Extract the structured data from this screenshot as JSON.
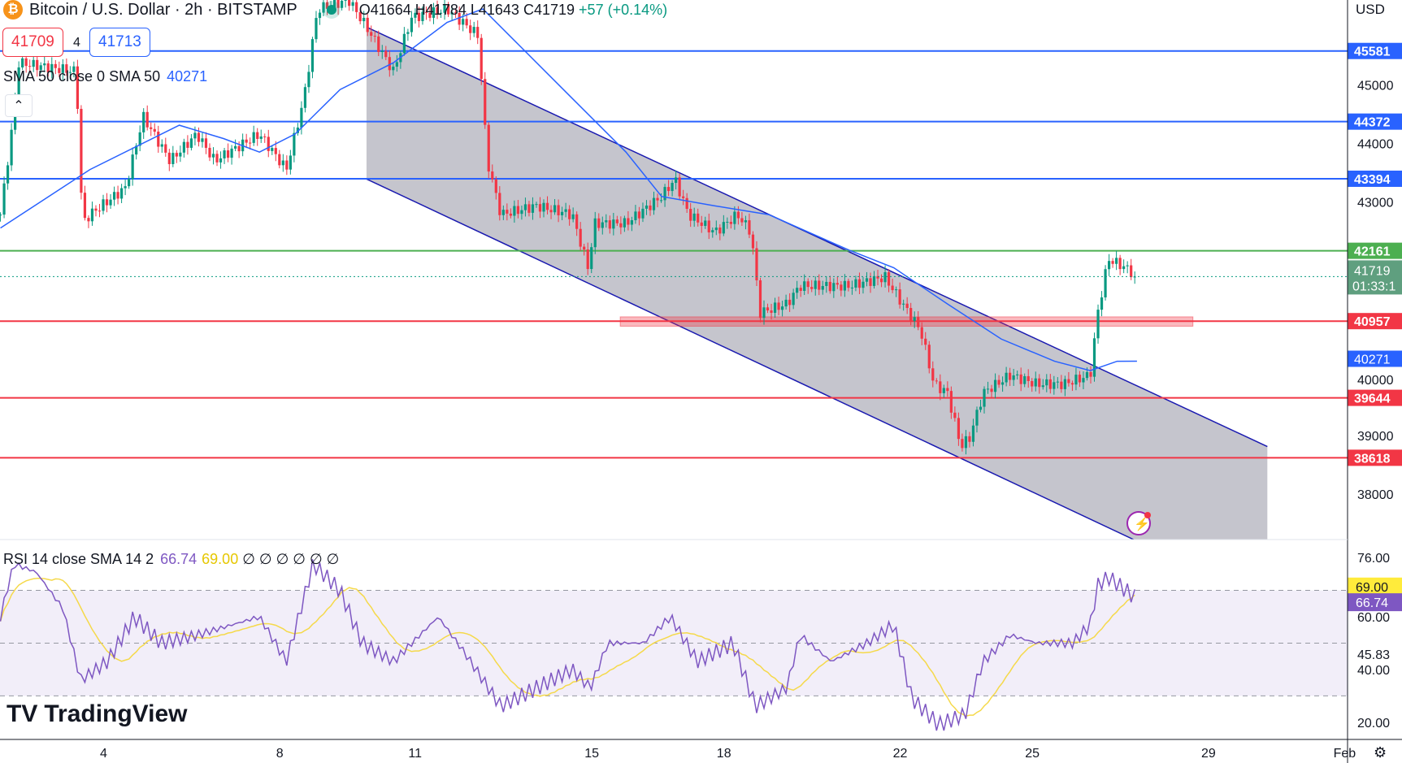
{
  "header": {
    "symbol": "Bitcoin / U.S. Dollar · 2h · BITSTAMP",
    "coin_icon": "bitcoin-icon",
    "open": "O41664",
    "high": "H41784",
    "low": "L41643",
    "close": "C41719",
    "change": "+57 (+0.14%)"
  },
  "order": {
    "sell": "41709",
    "spread": "4",
    "buy": "41713"
  },
  "sma": {
    "label": "SMA 50 close 0 SMA 50",
    "value": "40271"
  },
  "rsi": {
    "label": "RSI 14 close SMA 14 2",
    "value": "66.74",
    "sma_value": "69.00",
    "extras": "∅ ∅ ∅ ∅ ∅ ∅"
  },
  "axis": {
    "currency": "USD",
    "countdown": "01:33:1"
  },
  "logo": "TradingView",
  "colors": {
    "up": "#089981",
    "down": "#f23645",
    "blue": "#2962ff",
    "green": "#4caf50",
    "red": "#f23645",
    "sma": "#2962ff",
    "rsi": "#7e57c2",
    "rsi_sma": "#f5d94a",
    "channel": "#bbbbc4"
  },
  "chart_data": {
    "type": "candlestick",
    "x_unit": "day of January",
    "price_ticks": [
      38000,
      39000,
      40000,
      43000,
      44000,
      45000
    ],
    "x_ticks": [
      {
        "day": 4,
        "label": "4"
      },
      {
        "day": 8,
        "label": "8"
      },
      {
        "day": 11,
        "label": "11"
      },
      {
        "day": 15,
        "label": "15"
      },
      {
        "day": 18,
        "label": "18"
      },
      {
        "day": 22,
        "label": "22"
      },
      {
        "day": 25,
        "label": "25"
      },
      {
        "day": 29,
        "label": "29"
      },
      {
        "day": 32,
        "label": "Feb"
      }
    ],
    "price_path": [
      [
        1.63,
        42780
      ],
      [
        1.93,
        44460
      ],
      [
        2.03,
        45380
      ],
      [
        3.35,
        45230
      ],
      [
        3.49,
        42630
      ],
      [
        3.66,
        42780
      ],
      [
        4.47,
        43240
      ],
      [
        4.87,
        44460
      ],
      [
        5.48,
        43700
      ],
      [
        6.09,
        44160
      ],
      [
        6.49,
        43700
      ],
      [
        7.51,
        44160
      ],
      [
        8.12,
        43550
      ],
      [
        8.52,
        44770
      ],
      [
        8.83,
        46300
      ],
      [
        9.54,
        46450
      ],
      [
        9.94,
        45990
      ],
      [
        10.55,
        45230
      ],
      [
        10.96,
        46150
      ],
      [
        11.77,
        46300
      ],
      [
        12.48,
        45840
      ],
      [
        12.68,
        43700
      ],
      [
        12.99,
        42780
      ],
      [
        13.8,
        42930
      ],
      [
        14.61,
        42780
      ],
      [
        14.97,
        41870
      ],
      [
        15.12,
        42630
      ],
      [
        15.83,
        42630
      ],
      [
        16.64,
        43090
      ],
      [
        16.94,
        43390
      ],
      [
        17.25,
        42780
      ],
      [
        17.85,
        42480
      ],
      [
        18.36,
        42780
      ],
      [
        18.67,
        42480
      ],
      [
        18.87,
        41100
      ],
      [
        19.48,
        41250
      ],
      [
        19.78,
        41560
      ],
      [
        20.9,
        41560
      ],
      [
        21.71,
        41710
      ],
      [
        22.11,
        41250
      ],
      [
        22.52,
        40800
      ],
      [
        22.82,
        39880
      ],
      [
        23.13,
        39730
      ],
      [
        23.43,
        38810
      ],
      [
        23.63,
        38960
      ],
      [
        23.94,
        39730
      ],
      [
        24.55,
        40030
      ],
      [
        25.16,
        39880
      ],
      [
        25.76,
        39880
      ],
      [
        26.37,
        40030
      ],
      [
        26.54,
        41100
      ],
      [
        26.78,
        42020
      ],
      [
        27.18,
        41870
      ],
      [
        27.43,
        41719
      ]
    ],
    "sma50": [
      [
        1.63,
        42550
      ],
      [
        3.66,
        43550
      ],
      [
        5.69,
        44310
      ],
      [
        6.7,
        44080
      ],
      [
        7.51,
        43850
      ],
      [
        8.32,
        44160
      ],
      [
        9.34,
        44920
      ],
      [
        10.55,
        45380
      ],
      [
        11.77,
        46070
      ],
      [
        12.58,
        46300
      ],
      [
        13.39,
        45690
      ],
      [
        14.61,
        44770
      ],
      [
        15.83,
        43850
      ],
      [
        16.64,
        43090
      ],
      [
        17.85,
        42930
      ],
      [
        19.07,
        42780
      ],
      [
        20.9,
        42170
      ],
      [
        21.91,
        41870
      ],
      [
        23.13,
        41250
      ],
      [
        24.35,
        40650
      ],
      [
        25.56,
        40270
      ],
      [
        26.37,
        40110
      ],
      [
        26.98,
        40270
      ],
      [
        27.43,
        40271
      ]
    ],
    "rsi14": [
      [
        1.63,
        60
      ],
      [
        1.93,
        80
      ],
      [
        2.44,
        77
      ],
      [
        3.05,
        63
      ],
      [
        3.45,
        36
      ],
      [
        4.06,
        43
      ],
      [
        4.67,
        60
      ],
      [
        5.28,
        50
      ],
      [
        6.09,
        53
      ],
      [
        6.9,
        57
      ],
      [
        7.51,
        60
      ],
      [
        8.12,
        43
      ],
      [
        8.73,
        80
      ],
      [
        9.34,
        70
      ],
      [
        9.84,
        50
      ],
      [
        10.55,
        43
      ],
      [
        11.57,
        60
      ],
      [
        12.18,
        46
      ],
      [
        12.99,
        26
      ],
      [
        13.8,
        33
      ],
      [
        14.61,
        40
      ],
      [
        15.02,
        33
      ],
      [
        15.42,
        50
      ],
      [
        16.23,
        50
      ],
      [
        16.84,
        60
      ],
      [
        17.45,
        43
      ],
      [
        18.26,
        50
      ],
      [
        18.77,
        26
      ],
      [
        19.48,
        33
      ],
      [
        19.78,
        53
      ],
      [
        20.49,
        43
      ],
      [
        21.3,
        50
      ],
      [
        21.91,
        57
      ],
      [
        22.32,
        29
      ],
      [
        22.93,
        19
      ],
      [
        23.53,
        23
      ],
      [
        23.94,
        43
      ],
      [
        24.55,
        53
      ],
      [
        25.16,
        50
      ],
      [
        25.97,
        50
      ],
      [
        26.37,
        57
      ],
      [
        26.54,
        72
      ],
      [
        26.78,
        75
      ],
      [
        27.18,
        70
      ],
      [
        27.43,
        66.74
      ]
    ],
    "rsi_ticks": [
      76,
      60,
      45.83,
      40,
      20
    ],
    "rsi_bands": [
      70,
      50,
      30
    ],
    "levels": [
      {
        "price": 45581,
        "label": "45581",
        "color": "blue"
      },
      {
        "price": 44372,
        "label": "44372",
        "color": "blue"
      },
      {
        "price": 43394,
        "label": "43394",
        "color": "blue"
      },
      {
        "price": 42161,
        "label": "42161",
        "color": "green"
      },
      {
        "price": 40957,
        "label": "40957",
        "color": "red"
      },
      {
        "price": 39644,
        "label": "39644",
        "color": "red"
      },
      {
        "price": 38618,
        "label": "38618",
        "color": "red"
      }
    ],
    "current_price": "41719",
    "sma_label": "40271",
    "rsi_labels": {
      "sma": "69.00",
      "rsi": "66.74"
    },
    "channel": {
      "upper": [
        [
          9.94,
          45990
        ],
        [
          30.39,
          38810
        ]
      ],
      "lower": [
        [
          9.94,
          43390
        ],
        [
          27.35,
          37220
        ]
      ]
    },
    "zone": {
      "from": 15.7,
      "to": 28.7,
      "low": 40870,
      "high": 41030
    }
  }
}
